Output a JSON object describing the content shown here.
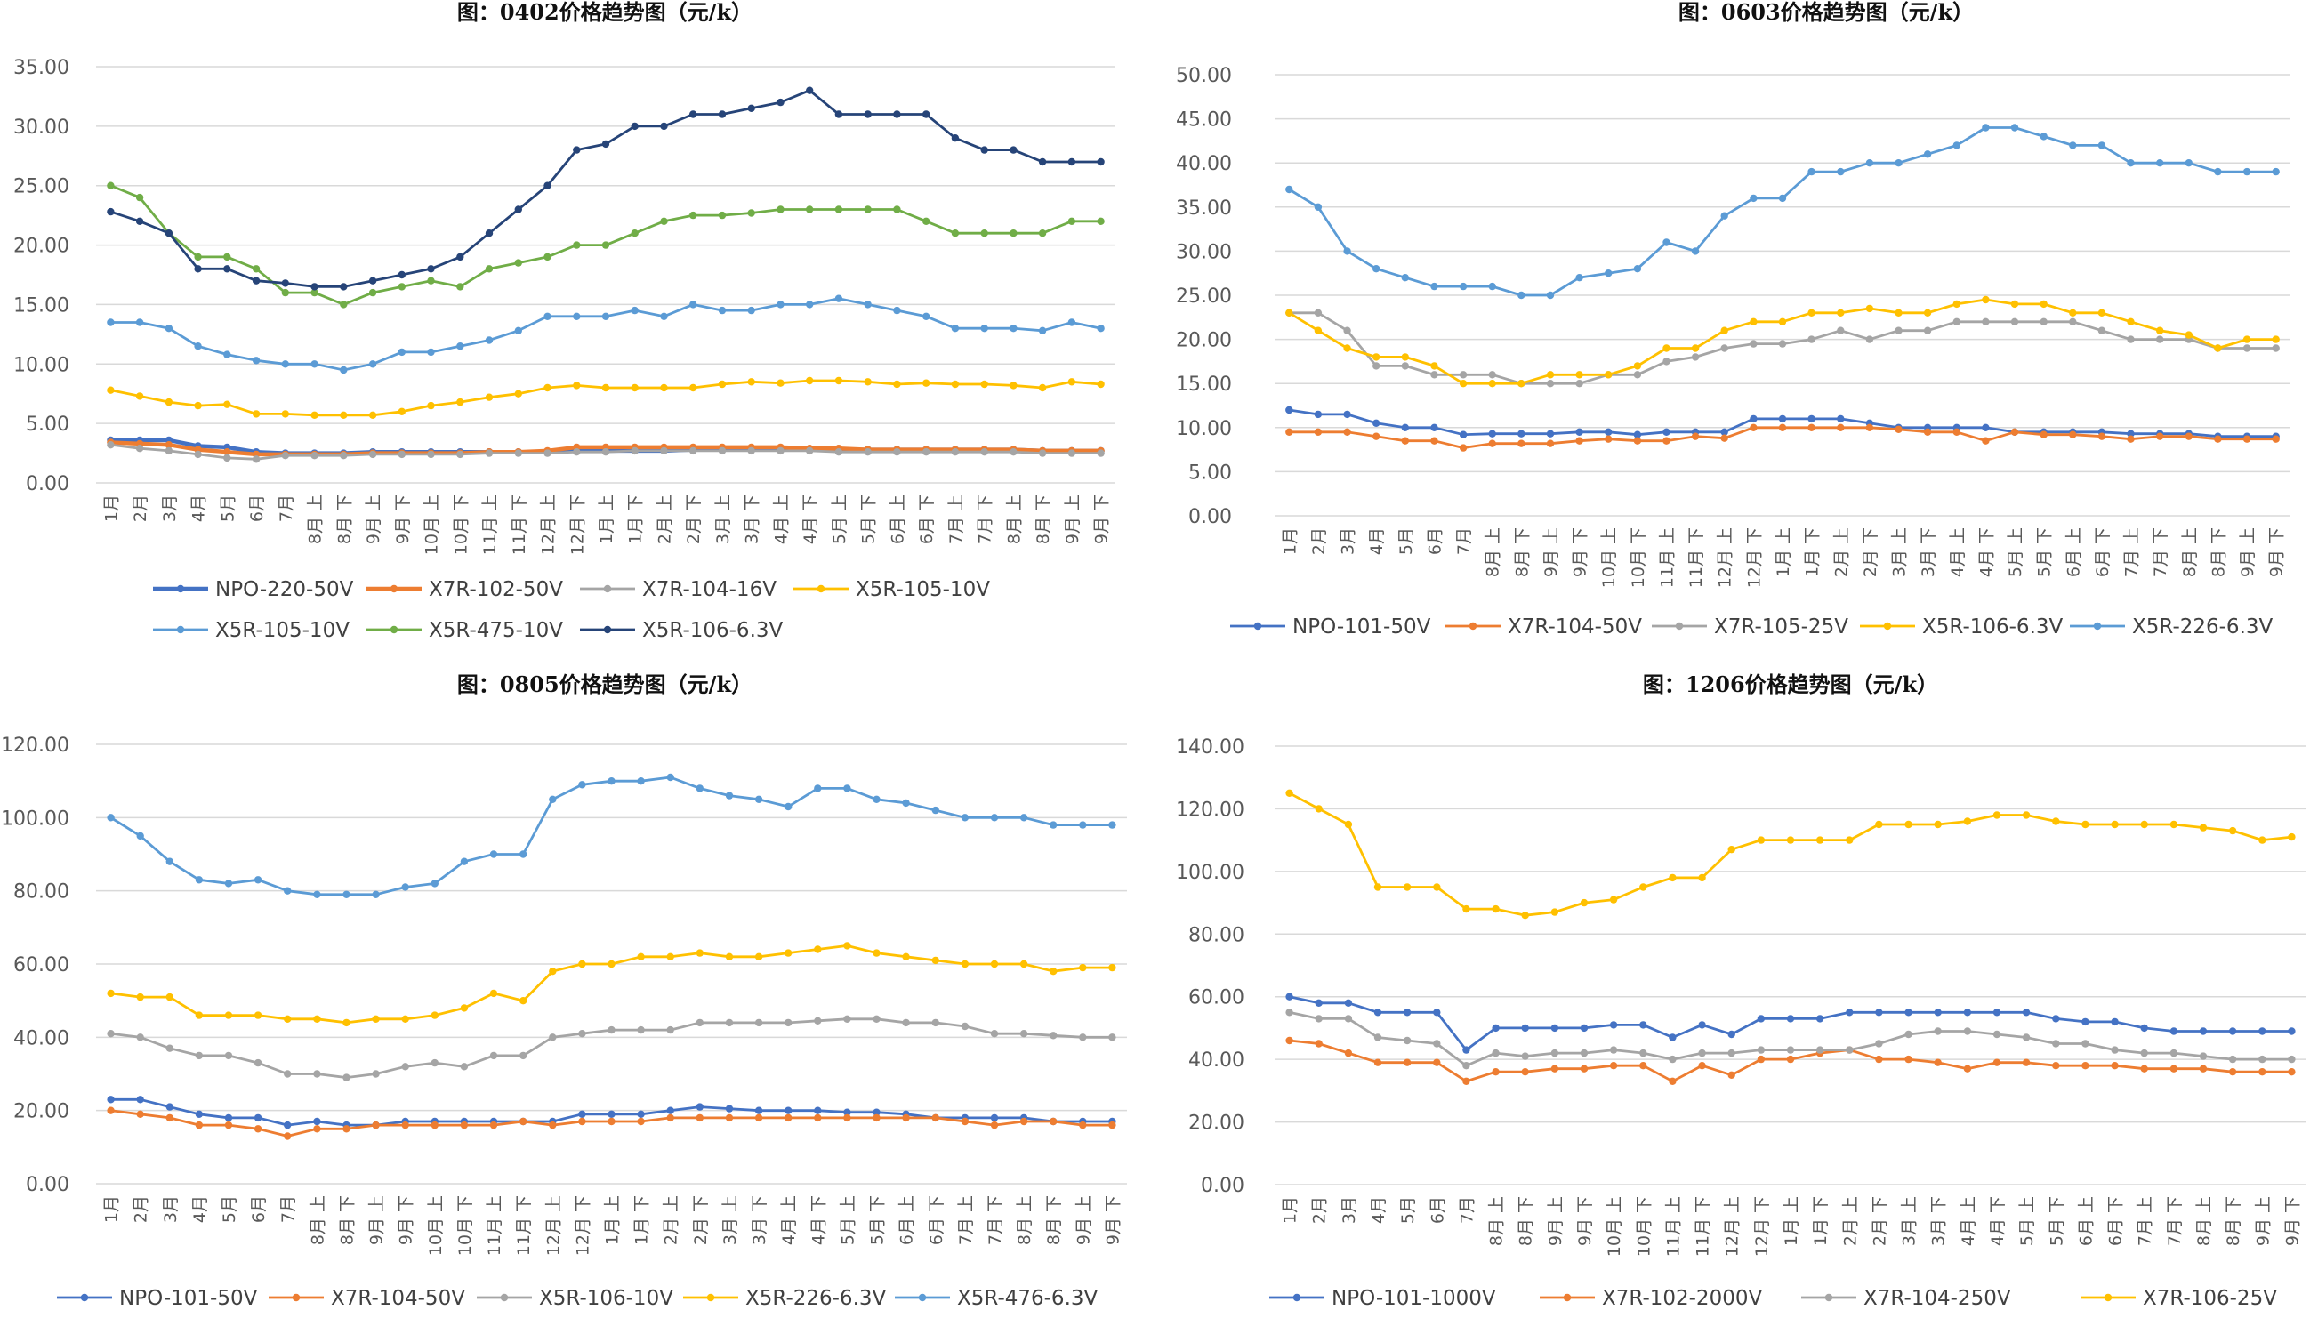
{
  "chart_data": [
    {
      "type": "line",
      "title": "图：0402价格趋势图（元/k）",
      "categories": [
        "1月",
        "2月",
        "3月",
        "4月",
        "5月",
        "6月",
        "7月",
        "8月 上",
        "8月 下",
        "9月 上",
        "9月 下",
        "10月 上",
        "10月 下",
        "11月 上",
        "11月 下",
        "12月 上",
        "12月 下",
        "1月 上",
        "1月 下",
        "2月 上",
        "2月 下",
        "3月 上",
        "3月 下",
        "4月 上",
        "4月 下",
        "5月 上",
        "5月 下",
        "6月 上",
        "6月 下",
        "7月 上",
        "7月 下",
        "8月 上",
        "8月 下",
        "9月 上",
        "9月 下"
      ],
      "ylim": [
        0,
        35
      ],
      "yticks": [
        "0.00",
        "5.00",
        "10.00",
        "15.00",
        "20.00",
        "25.00",
        "30.00",
        "35.00"
      ],
      "grid": true,
      "legend_position": "bottom",
      "series": [
        {
          "name": "NPO-220-50V",
          "color": "#4472C4",
          "values": [
            3.6,
            3.6,
            3.6,
            3.1,
            3.0,
            2.6,
            2.5,
            2.5,
            2.5,
            2.6,
            2.6,
            2.6,
            2.6,
            2.6,
            2.6,
            2.6,
            2.7,
            2.7,
            2.7,
            2.7,
            2.8,
            2.8,
            2.8,
            2.8,
            2.8,
            2.8,
            2.8,
            2.8,
            2.8,
            2.8,
            2.8,
            2.8,
            2.7,
            2.7,
            2.7
          ]
        },
        {
          "name": "X7R-102-50V",
          "color": "#ED7D31",
          "values": [
            3.4,
            3.3,
            3.2,
            2.8,
            2.6,
            2.4,
            2.4,
            2.4,
            2.4,
            2.5,
            2.5,
            2.5,
            2.5,
            2.6,
            2.6,
            2.7,
            3.0,
            3.0,
            3.0,
            3.0,
            3.0,
            3.0,
            3.0,
            3.0,
            2.9,
            2.9,
            2.8,
            2.8,
            2.8,
            2.8,
            2.8,
            2.8,
            2.7,
            2.7,
            2.7
          ]
        },
        {
          "name": "X7R-104-16V",
          "color": "#A5A5A5",
          "values": [
            3.2,
            2.9,
            2.7,
            2.4,
            2.1,
            2.0,
            2.3,
            2.3,
            2.3,
            2.4,
            2.4,
            2.4,
            2.4,
            2.5,
            2.5,
            2.5,
            2.6,
            2.6,
            2.7,
            2.7,
            2.7,
            2.7,
            2.7,
            2.7,
            2.7,
            2.6,
            2.6,
            2.6,
            2.6,
            2.6,
            2.6,
            2.6,
            2.5,
            2.5,
            2.5
          ]
        },
        {
          "name": "X5R-105-10V",
          "color": "#FFC000",
          "values": [
            7.8,
            7.3,
            6.8,
            6.5,
            6.6,
            5.8,
            5.8,
            5.7,
            5.7,
            5.7,
            6.0,
            6.5,
            6.8,
            7.2,
            7.5,
            8.0,
            8.2,
            8.0,
            8.0,
            8.0,
            8.0,
            8.3,
            8.5,
            8.4,
            8.6,
            8.6,
            8.5,
            8.3,
            8.4,
            8.3,
            8.3,
            8.2,
            8.0,
            8.5,
            8.3
          ]
        },
        {
          "name": "X5R-105-10V",
          "color": "#5B9BD5",
          "values": [
            13.5,
            13.5,
            13.0,
            11.5,
            10.8,
            10.3,
            10.0,
            10.0,
            9.5,
            10.0,
            11.0,
            11.0,
            11.5,
            12.0,
            12.8,
            14.0,
            14.0,
            14.0,
            14.5,
            14.0,
            15.0,
            14.5,
            14.5,
            15.0,
            15.0,
            15.5,
            15.0,
            14.5,
            14.0,
            13.0,
            13.0,
            13.0,
            12.8,
            13.5,
            13.0
          ]
        },
        {
          "name": "X5R-475-10V",
          "color": "#70AD47",
          "values": [
            25.0,
            24.0,
            21.0,
            19.0,
            19.0,
            18.0,
            16.0,
            16.0,
            15.0,
            16.0,
            16.5,
            17.0,
            16.5,
            18.0,
            18.5,
            19.0,
            20.0,
            20.0,
            21.0,
            22.0,
            22.5,
            22.5,
            22.7,
            23.0,
            23.0,
            23.0,
            23.0,
            23.0,
            22.0,
            21.0,
            21.0,
            21.0,
            21.0,
            22.0,
            22.0
          ]
        },
        {
          "name": "X5R-106-6.3V",
          "color": "#264478",
          "values": [
            22.8,
            22.0,
            21.0,
            18.0,
            18.0,
            17.0,
            16.8,
            16.5,
            16.5,
            17.0,
            17.5,
            18.0,
            19.0,
            21.0,
            23.0,
            25.0,
            28.0,
            28.5,
            30.0,
            30.0,
            31.0,
            31.0,
            31.5,
            32.0,
            33.0,
            31.0,
            31.0,
            31.0,
            31.0,
            29.0,
            28.0,
            28.0,
            27.0,
            27.0,
            27.0
          ]
        }
      ]
    },
    {
      "type": "line",
      "title": "图：0603价格趋势图（元/k）",
      "categories": [
        "1月",
        "2月",
        "3月",
        "4月",
        "5月",
        "6月",
        "7月",
        "8月 上",
        "8月 下",
        "9月 上",
        "9月 下",
        "10月 上",
        "10月 下",
        "11月 上",
        "11月 下",
        "12月 上",
        "12月 下",
        "1月 上",
        "1月 下",
        "2月 上",
        "2月 下",
        "3月 上",
        "3月 下",
        "4月 上",
        "4月 下",
        "5月 上",
        "5月 下",
        "6月 上",
        "6月 下",
        "7月 上",
        "7月 下",
        "8月 上",
        "8月 下",
        "9月 上",
        "9月 下"
      ],
      "ylim": [
        0,
        50
      ],
      "yticks": [
        "0.00",
        "5.00",
        "10.00",
        "15.00",
        "20.00",
        "25.00",
        "30.00",
        "35.00",
        "40.00",
        "45.00",
        "50.00"
      ],
      "grid": true,
      "legend_position": "bottom",
      "series": [
        {
          "name": "NPO-101-50V",
          "color": "#4472C4",
          "values": [
            12.0,
            11.5,
            11.5,
            10.5,
            10.0,
            10.0,
            9.2,
            9.3,
            9.3,
            9.3,
            9.5,
            9.5,
            9.2,
            9.5,
            9.5,
            9.5,
            11.0,
            11.0,
            11.0,
            11.0,
            10.5,
            10.0,
            10.0,
            10.0,
            10.0,
            9.5,
            9.5,
            9.5,
            9.5,
            9.3,
            9.3,
            9.3,
            9.0,
            9.0,
            9.0
          ]
        },
        {
          "name": "X7R-104-50V",
          "color": "#ED7D31",
          "values": [
            9.5,
            9.5,
            9.5,
            9.0,
            8.5,
            8.5,
            7.7,
            8.2,
            8.2,
            8.2,
            8.5,
            8.7,
            8.5,
            8.5,
            9.0,
            8.8,
            10.0,
            10.0,
            10.0,
            10.0,
            10.0,
            9.8,
            9.5,
            9.5,
            8.5,
            9.5,
            9.2,
            9.2,
            9.0,
            8.7,
            9.0,
            9.0,
            8.7,
            8.7,
            8.7
          ]
        },
        {
          "name": "X7R-105-25V",
          "color": "#A5A5A5",
          "values": [
            23.0,
            23.0,
            21.0,
            17.0,
            17.0,
            16.0,
            16.0,
            16.0,
            15.0,
            15.0,
            15.0,
            16.0,
            16.0,
            17.5,
            18.0,
            19.0,
            19.5,
            19.5,
            20.0,
            21.0,
            20.0,
            21.0,
            21.0,
            22.0,
            22.0,
            22.0,
            22.0,
            22.0,
            21.0,
            20.0,
            20.0,
            20.0,
            19.0,
            19.0,
            19.0
          ]
        },
        {
          "name": "X5R-106-6.3V",
          "color": "#FFC000",
          "values": [
            23.0,
            21.0,
            19.0,
            18.0,
            18.0,
            17.0,
            15.0,
            15.0,
            15.0,
            16.0,
            16.0,
            16.0,
            17.0,
            19.0,
            19.0,
            21.0,
            22.0,
            22.0,
            23.0,
            23.0,
            23.5,
            23.0,
            23.0,
            24.0,
            24.5,
            24.0,
            24.0,
            23.0,
            23.0,
            22.0,
            21.0,
            20.5,
            19.0,
            20.0,
            20.0
          ]
        },
        {
          "name": "X5R-226-6.3V",
          "color": "#5B9BD5",
          "values": [
            37.0,
            35.0,
            30.0,
            28.0,
            27.0,
            26.0,
            26.0,
            26.0,
            25.0,
            25.0,
            27.0,
            27.5,
            28.0,
            31.0,
            30.0,
            34.0,
            36.0,
            36.0,
            39.0,
            39.0,
            40.0,
            40.0,
            41.0,
            42.0,
            44.0,
            44.0,
            43.0,
            42.0,
            42.0,
            40.0,
            40.0,
            40.0,
            39.0,
            39.0,
            39.0
          ]
        }
      ]
    },
    {
      "type": "line",
      "title": "图：0805价格趋势图（元/k）",
      "categories": [
        "1月",
        "2月",
        "3月",
        "4月",
        "5月",
        "6月",
        "7月",
        "8月 上",
        "8月 下",
        "9月 上",
        "9月 下",
        "10月 上",
        "10月 下",
        "11月 上",
        "11月 下",
        "12月 上",
        "12月 下",
        "1月 上",
        "1月 下",
        "2月 上",
        "2月 下",
        "3月 上",
        "3月 下",
        "4月 上",
        "4月 下",
        "5月 上",
        "5月 下",
        "6月 上",
        "6月 下",
        "7月 上",
        "7月 下",
        "8月 上",
        "8月 下",
        "9月 上",
        "9月 下"
      ],
      "ylim": [
        0,
        120
      ],
      "yticks": [
        "0.00",
        "20.00",
        "40.00",
        "60.00",
        "80.00",
        "100.00",
        "120.00"
      ],
      "grid": true,
      "legend_position": "bottom",
      "series": [
        {
          "name": "NPO-101-50V",
          "color": "#4472C4",
          "values": [
            23,
            23,
            21,
            19,
            18,
            18,
            16,
            17,
            16,
            16,
            17,
            17,
            17,
            17,
            17,
            17,
            19,
            19,
            19,
            20,
            21,
            20.5,
            20,
            20,
            20,
            19.5,
            19.5,
            19,
            18,
            18,
            18,
            18,
            17,
            17,
            17
          ]
        },
        {
          "name": "X7R-104-50V",
          "color": "#ED7D31",
          "values": [
            20,
            19,
            18,
            16,
            16,
            15,
            13,
            15,
            15,
            16,
            16,
            16,
            16,
            16,
            17,
            16,
            17,
            17,
            17,
            18,
            18,
            18,
            18,
            18,
            18,
            18,
            18,
            18,
            18,
            17,
            16,
            17,
            17,
            16,
            16
          ]
        },
        {
          "name": "X5R-106-10V",
          "color": "#A5A5A5",
          "values": [
            41,
            40,
            37,
            35,
            35,
            33,
            30,
            30,
            29,
            30,
            32,
            33,
            32,
            35,
            35,
            40,
            41,
            42,
            42,
            42,
            44,
            44,
            44,
            44,
            44.5,
            45,
            45,
            44,
            44,
            43,
            41,
            41,
            40.5,
            40,
            40
          ]
        },
        {
          "name": "X5R-226-6.3V",
          "color": "#FFC000",
          "values": [
            52,
            51,
            51,
            46,
            46,
            46,
            45,
            45,
            44,
            45,
            45,
            46,
            48,
            52,
            50,
            58,
            60,
            60,
            62,
            62,
            63,
            62,
            62,
            63,
            64,
            65,
            63,
            62,
            61,
            60,
            60,
            60,
            58,
            59,
            59
          ]
        },
        {
          "name": "X5R-476-6.3V",
          "color": "#5B9BD5",
          "values": [
            100,
            95,
            88,
            83,
            82,
            83,
            80,
            79,
            79,
            79,
            81,
            82,
            88,
            90,
            90,
            105,
            109,
            110,
            110,
            111,
            108,
            106,
            105,
            103,
            108,
            108,
            105,
            104,
            102,
            100,
            100,
            100,
            98,
            98,
            98
          ]
        }
      ]
    },
    {
      "type": "line",
      "title": "图：1206价格趋势图（元/k）",
      "categories": [
        "1月",
        "2月",
        "3月",
        "4月",
        "5月",
        "6月",
        "7月",
        "8月 上",
        "8月 下",
        "9月 上",
        "9月 下",
        "10月 上",
        "10月 下",
        "11月 上",
        "11月 下",
        "12月 上",
        "12月 下",
        "1月 上",
        "1月 下",
        "2月 上",
        "2月 下",
        "3月 上",
        "3月 下",
        "4月 上",
        "4月 下",
        "5月 上",
        "5月 下",
        "6月 上",
        "6月 下",
        "7月 上",
        "7月 下",
        "8月 上",
        "8月 下",
        "9月 上",
        "9月 下"
      ],
      "ylim": [
        0,
        140
      ],
      "yticks": [
        "0.00",
        "20.00",
        "40.00",
        "60.00",
        "80.00",
        "100.00",
        "120.00",
        "140.00"
      ],
      "grid": true,
      "legend_position": "bottom",
      "series": [
        {
          "name": "NPO-101-1000V",
          "color": "#4472C4",
          "values": [
            60,
            58,
            58,
            55,
            55,
            55,
            43,
            50,
            50,
            50,
            50,
            51,
            51,
            47,
            51,
            48,
            53,
            53,
            53,
            55,
            55,
            55,
            55,
            55,
            55,
            55,
            53,
            52,
            52,
            50,
            49,
            49,
            49,
            49,
            49
          ]
        },
        {
          "name": "X7R-102-2000V",
          "color": "#ED7D31",
          "values": [
            46,
            45,
            42,
            39,
            39,
            39,
            33,
            36,
            36,
            37,
            37,
            38,
            38,
            33,
            38,
            35,
            40,
            40,
            42,
            43,
            40,
            40,
            39,
            37,
            39,
            39,
            38,
            38,
            38,
            37,
            37,
            37,
            36,
            36,
            36
          ]
        },
        {
          "name": "X7R-104-250V",
          "color": "#A5A5A5",
          "values": [
            55,
            53,
            53,
            47,
            46,
            45,
            38,
            42,
            41,
            42,
            42,
            43,
            42,
            40,
            42,
            42,
            43,
            43,
            43,
            43,
            45,
            48,
            49,
            49,
            48,
            47,
            45,
            45,
            43,
            42,
            42,
            41,
            40,
            40,
            40
          ]
        },
        {
          "name": "X7R-106-25V",
          "color": "#FFC000",
          "values": [
            125,
            120,
            115,
            95,
            95,
            95,
            88,
            88,
            86,
            87,
            90,
            91,
            95,
            98,
            98,
            107,
            110,
            110,
            110,
            110,
            115,
            115,
            115,
            116,
            118,
            118,
            116,
            115,
            115,
            115,
            115,
            114,
            113,
            110,
            111
          ]
        }
      ]
    }
  ]
}
